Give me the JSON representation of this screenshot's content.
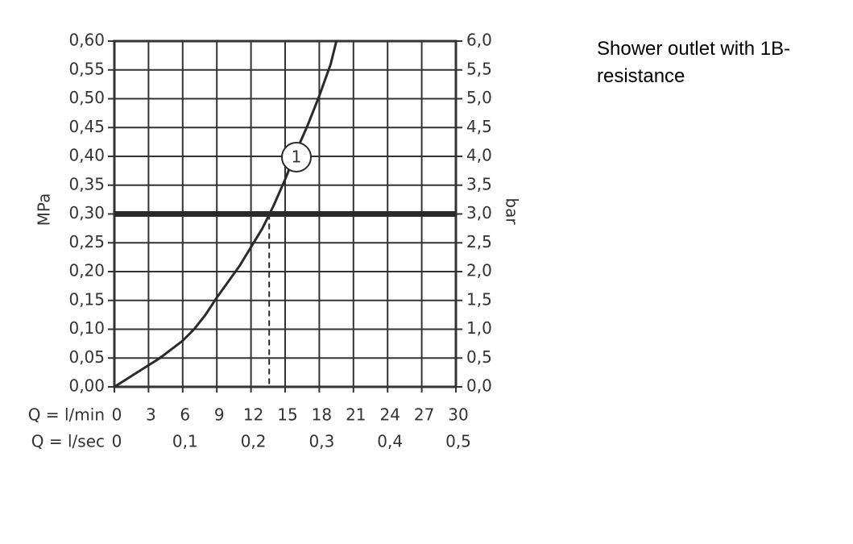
{
  "chart_data": {
    "type": "line",
    "title": "Shower outlet with 1B-resistance",
    "y_label": "MPa",
    "y2_label": "bar",
    "x_label": "Q = l/min",
    "x2_label": "Q = l/sec",
    "x": [
      0,
      2,
      4,
      6,
      7,
      8,
      9,
      11,
      13,
      14,
      15,
      16,
      17,
      18,
      19,
      19.5
    ],
    "series": [
      {
        "name": "1",
        "color": "#2a2a2a",
        "values": [
          0,
          0.025,
          0.05,
          0.08,
          0.1,
          0.125,
          0.155,
          0.21,
          0.275,
          0.315,
          0.36,
          0.41,
          0.455,
          0.505,
          0.56,
          0.6
        ]
      }
    ],
    "reference_y": 0.3,
    "reference_x": 13.6,
    "xlim": [
      0,
      30
    ],
    "xticks": [
      0,
      3,
      6,
      9,
      12,
      15,
      18,
      21,
      24,
      27,
      30
    ],
    "x2lim": [
      0,
      0.5
    ],
    "x2ticks": [
      0,
      {
        "value": 0.1,
        "label": "0,1"
      },
      {
        "value": 0.2,
        "label": "0,2"
      },
      {
        "value": 0.3,
        "label": "0,3"
      },
      {
        "value": 0.4,
        "label": "0,4"
      },
      {
        "value": 0.5,
        "label": "0,5"
      }
    ],
    "ylim": [
      0,
      0.6
    ],
    "yticks": [
      {
        "value": 0,
        "label": "0,00"
      },
      {
        "value": 0.05,
        "label": "0,05"
      },
      {
        "value": 0.1,
        "label": "0,10"
      },
      {
        "value": 0.15,
        "label": "0,15"
      },
      {
        "value": 0.2,
        "label": "0,20"
      },
      {
        "value": 0.25,
        "label": "0,25"
      },
      {
        "value": 0.3,
        "label": "0,30"
      },
      {
        "value": 0.35,
        "label": "0,35"
      },
      {
        "value": 0.4,
        "label": "0,40"
      },
      {
        "value": 0.45,
        "label": "0,45"
      },
      {
        "value": 0.5,
        "label": "0,50"
      },
      {
        "value": 0.55,
        "label": "0,55"
      },
      {
        "value": 0.6,
        "label": "0,60"
      }
    ],
    "y2lim": [
      0,
      6
    ],
    "y2ticks": [
      {
        "value": 0,
        "label": "0,0"
      },
      {
        "value": 0.5,
        "label": "0,5"
      },
      {
        "value": 1,
        "label": "1,0"
      },
      {
        "value": 1.5,
        "label": "1,5"
      },
      {
        "value": 2,
        "label": "2,0"
      },
      {
        "value": 2.5,
        "label": "2,5"
      },
      {
        "value": 3,
        "label": "3,0"
      },
      {
        "value": 3.5,
        "label": "3,5"
      },
      {
        "value": 4,
        "label": "4,0"
      },
      {
        "value": 4.5,
        "label": "4,5"
      },
      {
        "value": 5,
        "label": "5,0"
      },
      {
        "value": 5.5,
        "label": "5,5"
      },
      {
        "value": 6,
        "label": "6,0"
      }
    ],
    "grid": true
  }
}
